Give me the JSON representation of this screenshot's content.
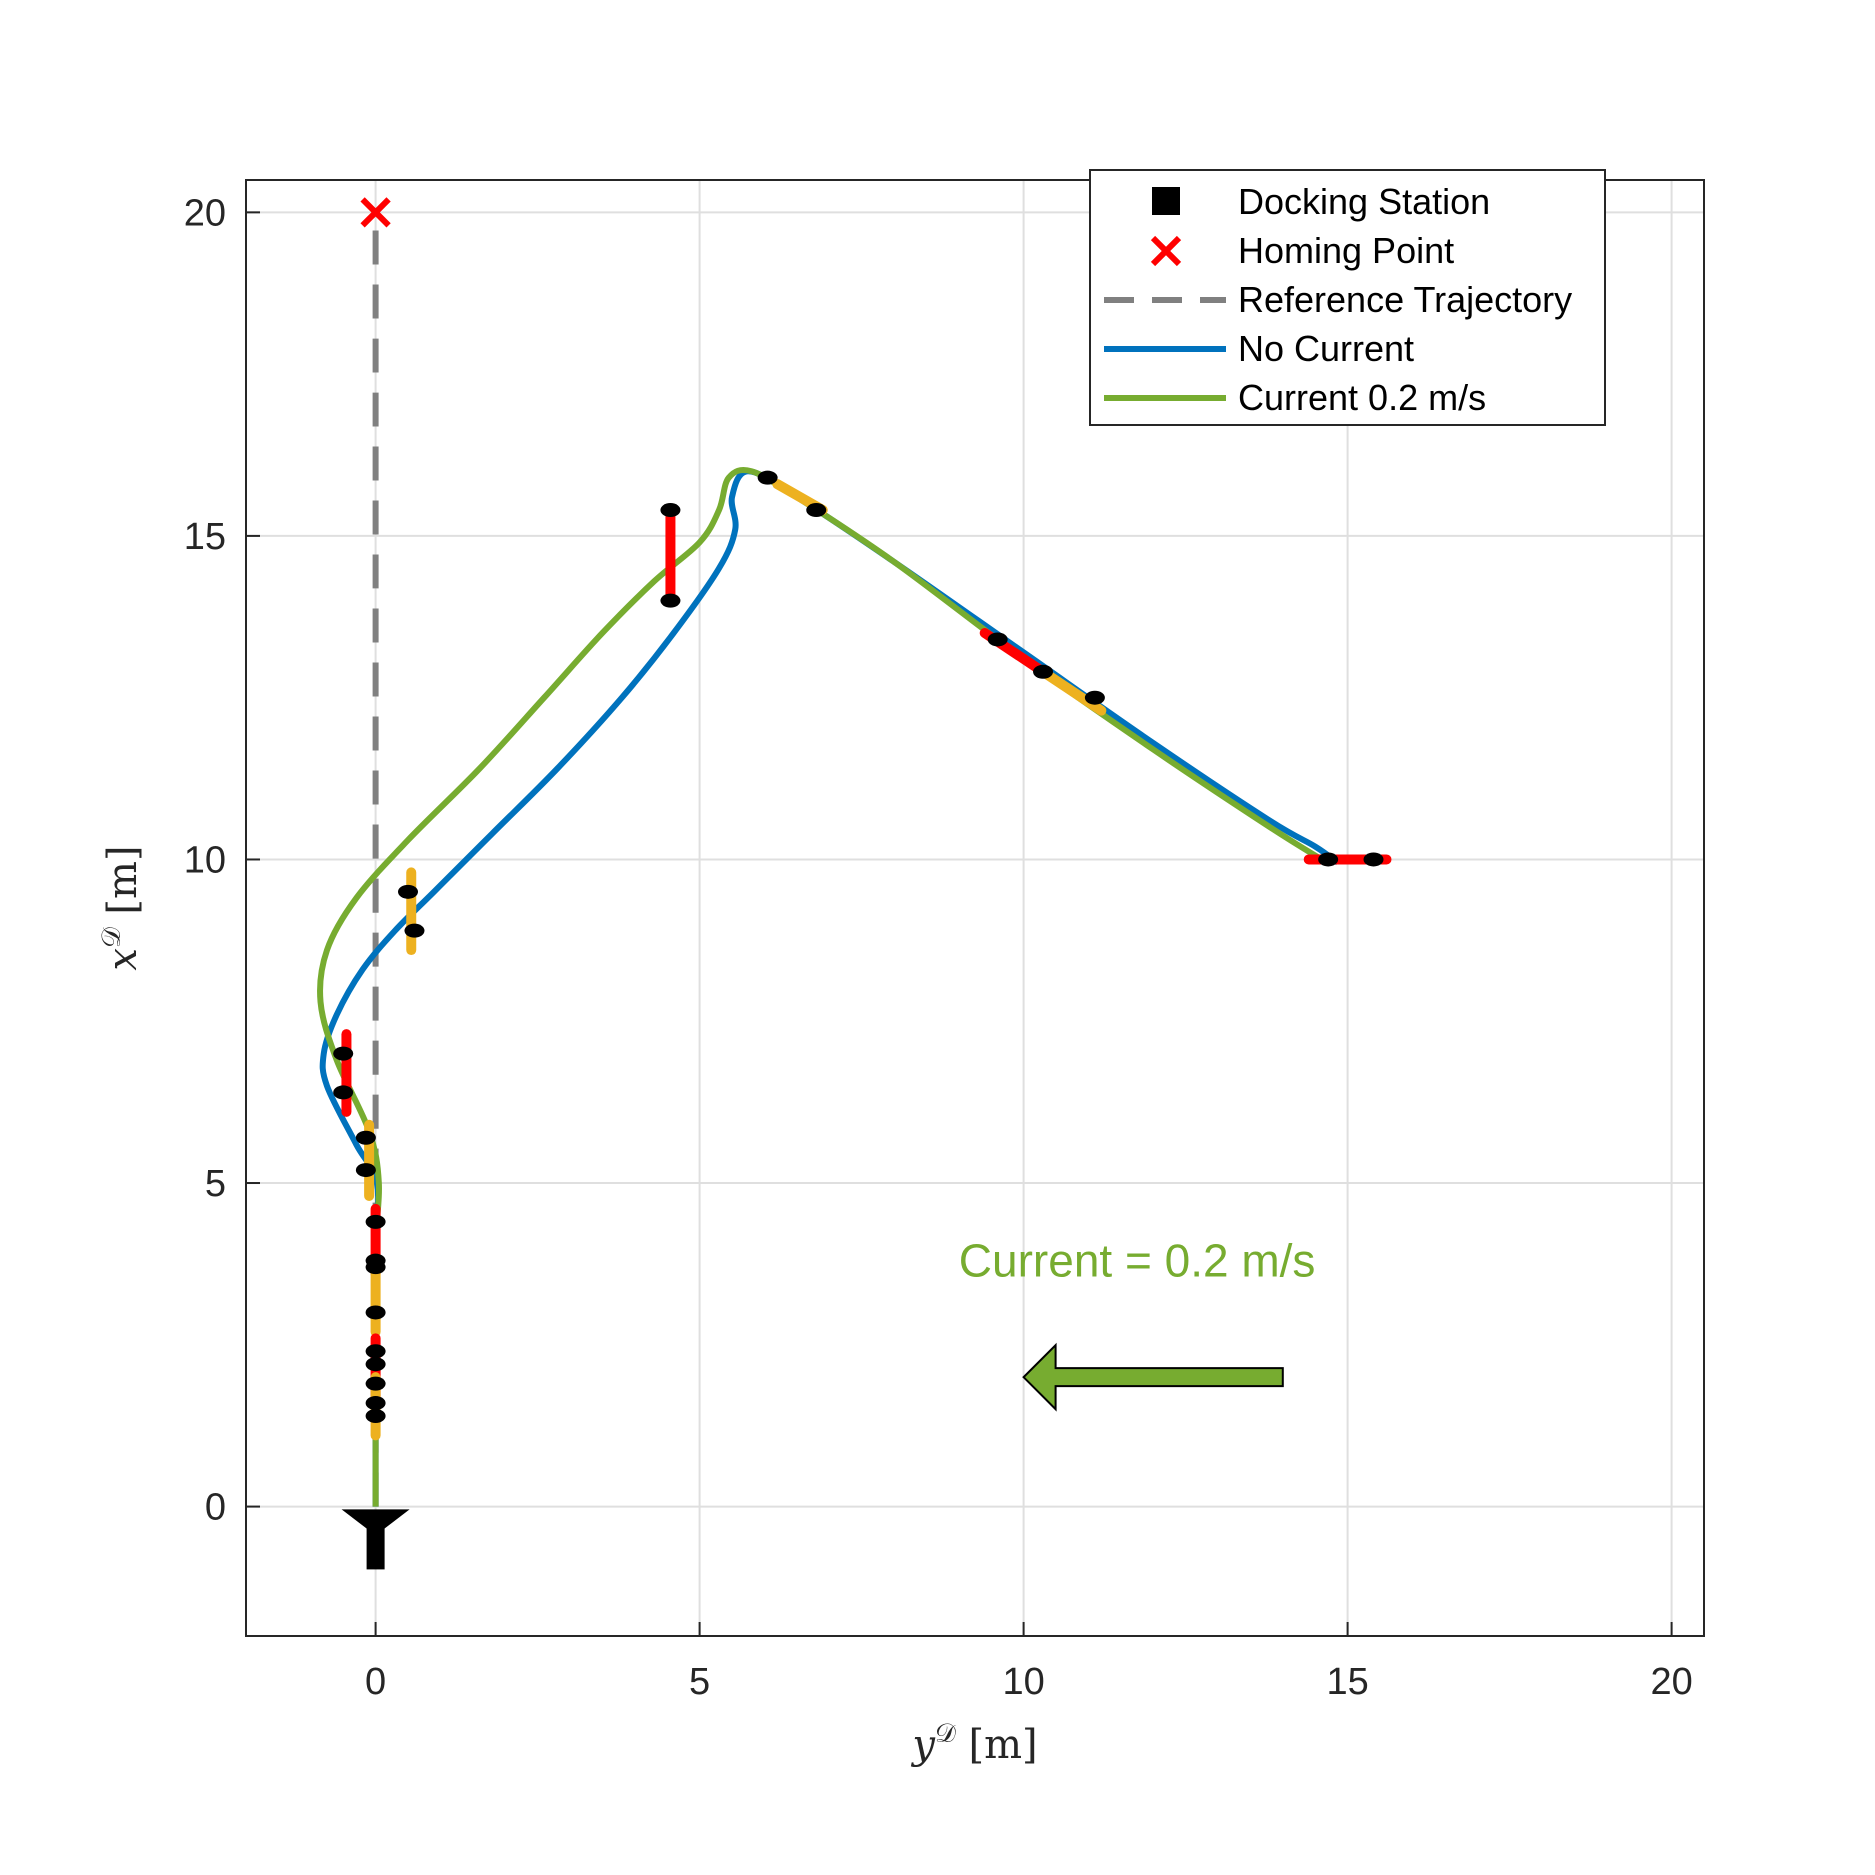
{
  "chart_data": {
    "type": "line",
    "xlabel": "y",
    "xlabel_sup": "𝒟",
    "xlabel_unit": " [m]",
    "ylabel": "x",
    "ylabel_sup": "𝒟",
    "ylabel_unit": " [m]",
    "xlim": [
      -2,
      20.5
    ],
    "ylim": [
      -2,
      20.5
    ],
    "xticks": [
      0,
      5,
      10,
      15,
      20
    ],
    "yticks": [
      0,
      5,
      10,
      15,
      20
    ],
    "grid": true,
    "legend_position": "top-right",
    "colors": {
      "axis": "#262626",
      "grid": "#dfdfdf",
      "reference": "#808080",
      "no_current": "#0072bd",
      "current": "#77ac30",
      "homing": "#ff0000",
      "docking": "#000000",
      "segment_red": "#ff0000",
      "segment_orange": "#edb120",
      "marker": "#000000"
    },
    "legend": [
      {
        "label": "Docking Station",
        "symbol": "square"
      },
      {
        "label": "Homing Point",
        "symbol": "x"
      },
      {
        "label": "Reference Trajectory",
        "symbol": "dashed"
      },
      {
        "label": "No Current",
        "symbol": "line-blue"
      },
      {
        "label": "Current 0.2 m/s",
        "symbol": "line-green"
      }
    ],
    "docking_station": {
      "x": 0,
      "y": -0.6
    },
    "homing_point": {
      "x": 0,
      "y": 20
    },
    "series": [
      {
        "name": "Reference Trajectory",
        "style": "dashed",
        "points": [
          [
            0,
            0
          ],
          [
            0,
            20
          ]
        ]
      },
      {
        "name": "No Current",
        "style": "solid",
        "points": [
          [
            0,
            0
          ],
          [
            0,
            2
          ],
          [
            0,
            4
          ],
          [
            0.02,
            5
          ],
          [
            -0.3,
            5.6
          ],
          [
            -0.75,
            6.5
          ],
          [
            -0.8,
            7.0
          ],
          [
            -0.6,
            7.6
          ],
          [
            -0.2,
            8.3
          ],
          [
            0.3,
            8.9
          ],
          [
            0.9,
            9.5
          ],
          [
            1.8,
            10.4
          ],
          [
            2.8,
            11.4
          ],
          [
            3.8,
            12.5
          ],
          [
            4.6,
            13.5
          ],
          [
            5.3,
            14.5
          ],
          [
            5.55,
            15.1
          ],
          [
            5.5,
            15.6
          ],
          [
            5.75,
            16.0
          ],
          [
            6.5,
            15.6
          ],
          [
            8.0,
            14.6
          ],
          [
            10.0,
            13.2
          ],
          [
            12.0,
            11.8
          ],
          [
            13.8,
            10.6
          ],
          [
            14.5,
            10.2
          ],
          [
            14.85,
            9.95
          ]
        ]
      },
      {
        "name": "Current 0.2 m/s",
        "style": "solid",
        "points": [
          [
            0,
            0
          ],
          [
            0,
            2
          ],
          [
            0,
            4
          ],
          [
            0.05,
            5.0
          ],
          [
            -0.1,
            5.8
          ],
          [
            -0.6,
            6.9
          ],
          [
            -0.85,
            7.8
          ],
          [
            -0.75,
            8.6
          ],
          [
            -0.3,
            9.4
          ],
          [
            0.5,
            10.3
          ],
          [
            1.6,
            11.4
          ],
          [
            2.6,
            12.5
          ],
          [
            3.5,
            13.5
          ],
          [
            4.3,
            14.3
          ],
          [
            5.0,
            14.9
          ],
          [
            5.3,
            15.4
          ],
          [
            5.45,
            15.9
          ],
          [
            5.8,
            16.0
          ],
          [
            6.5,
            15.6
          ],
          [
            8.0,
            14.6
          ],
          [
            10.0,
            13.1
          ],
          [
            12.0,
            11.7
          ],
          [
            13.8,
            10.5
          ],
          [
            14.6,
            10.0
          ]
        ]
      }
    ],
    "segments": [
      {
        "color": "red",
        "x1": 4.55,
        "y1": 14.1,
        "x2": 4.55,
        "y2": 15.3
      },
      {
        "color": "orange",
        "x1": 6.2,
        "y1": 15.8,
        "x2": 6.9,
        "y2": 15.4
      },
      {
        "color": "red",
        "x1": 9.4,
        "y1": 13.5,
        "x2": 10.3,
        "y2": 12.9
      },
      {
        "color": "orange",
        "x1": 10.3,
        "y1": 12.9,
        "x2": 11.2,
        "y2": 12.3
      },
      {
        "color": "red",
        "x1": 14.4,
        "y1": 10.0,
        "x2": 15.6,
        "y2": 10.0
      },
      {
        "color": "orange",
        "x1": 0.55,
        "y1": 8.6,
        "x2": 0.55,
        "y2": 9.8
      },
      {
        "color": "red",
        "x1": -0.45,
        "y1": 6.1,
        "x2": -0.45,
        "y2": 7.3
      },
      {
        "color": "orange",
        "x1": -0.1,
        "y1": 4.8,
        "x2": -0.1,
        "y2": 5.9
      },
      {
        "color": "red",
        "x1": 0.0,
        "y1": 3.6,
        "x2": 0.0,
        "y2": 4.6
      },
      {
        "color": "orange",
        "x1": 0.0,
        "y1": 2.7,
        "x2": 0.0,
        "y2": 3.7
      },
      {
        "color": "red",
        "x1": 0.0,
        "y1": 1.6,
        "x2": 0.0,
        "y2": 2.6
      },
      {
        "color": "orange",
        "x1": 0.0,
        "y1": 1.1,
        "x2": 0.0,
        "y2": 2.0
      }
    ],
    "markers": [
      [
        4.55,
        14.0
      ],
      [
        4.55,
        15.4
      ],
      [
        6.05,
        15.9
      ],
      [
        6.8,
        15.4
      ],
      [
        9.6,
        13.4
      ],
      [
        10.3,
        12.9
      ],
      [
        11.1,
        12.5
      ],
      [
        14.7,
        10.0
      ],
      [
        15.4,
        10.0
      ],
      [
        0.5,
        9.5
      ],
      [
        0.6,
        8.9
      ],
      [
        -0.5,
        7.0
      ],
      [
        -0.5,
        6.4
      ],
      [
        -0.15,
        5.7
      ],
      [
        -0.15,
        5.2
      ],
      [
        0.0,
        4.4
      ],
      [
        0.0,
        3.8
      ],
      [
        0.0,
        3.7
      ],
      [
        0.0,
        3.0
      ],
      [
        0.0,
        2.4
      ],
      [
        0.0,
        2.2
      ],
      [
        0.0,
        1.9
      ],
      [
        0.0,
        1.6
      ],
      [
        0.0,
        1.4
      ]
    ],
    "annotation": {
      "text": "Current = 0.2 m/s",
      "x": 9.0,
      "y": 3.8,
      "arrow_from": [
        14.0,
        2.0
      ],
      "arrow_to": [
        10.0,
        2.0
      ]
    }
  }
}
